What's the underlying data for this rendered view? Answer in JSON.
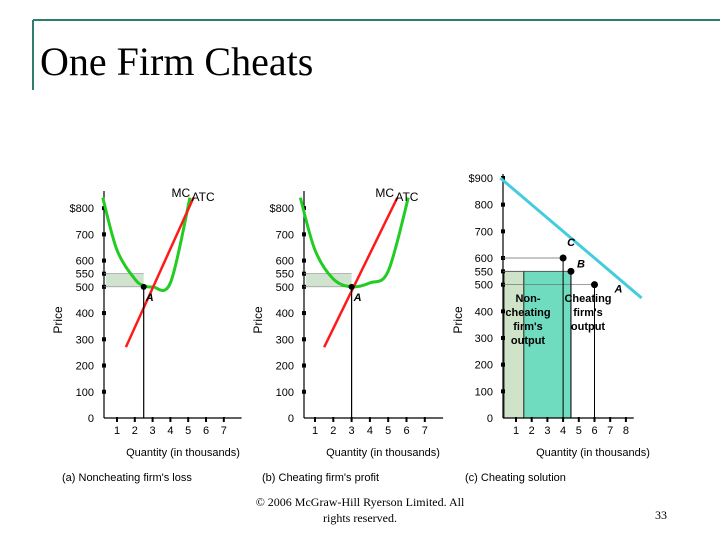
{
  "slide": {
    "title": "One Firm Cheats",
    "copyright": "© 2006 McGraw-Hill Ryerson Limited. All rights reserved.",
    "page_number": "33"
  },
  "colors": {
    "rule": "#2e7d6e",
    "price_band": "#cfe3cf",
    "mc_curve": "#ff1a1a",
    "atc_curve": "#22cc22",
    "demand_line": "#44ccdd",
    "noncheat_area": "#cfe3c8",
    "cheat_area": "#6fdcc0",
    "axes": "#000000"
  },
  "chart_data": [
    {
      "type": "line",
      "caption": "(a) Noncheating firm's loss",
      "xlabel": "Quantity (in thousands)",
      "ylabel": "Price",
      "x_ticks": [
        "1",
        "2",
        "3",
        "4",
        "5",
        "6",
        "7"
      ],
      "y_ticks": [
        "0",
        "100",
        "200",
        "300",
        "400",
        "500",
        "550",
        "600",
        "700",
        "$800"
      ],
      "xlim": [
        0,
        8
      ],
      "ylim": [
        0,
        850
      ],
      "atc_series": {
        "name": "ATC",
        "x": [
          0.2,
          1,
          2,
          2.5,
          3,
          4,
          5.1
        ],
        "y": [
          840,
          640,
          530,
          505,
          500,
          515,
          840
        ]
      },
      "mc_series": {
        "name": "MC",
        "x": [
          1.5,
          5.3
        ],
        "y": [
          270,
          840
        ]
      },
      "point": {
        "label": "A",
        "x": 2.5,
        "y": 500
      },
      "qline_x": 2.5,
      "price_band": [
        500,
        550
      ],
      "curve_labels": {
        "mc": "MC",
        "atc": "ATC"
      }
    },
    {
      "type": "line",
      "caption": "(b) Cheating firm's profit",
      "xlabel": "Quantity (in thousands)",
      "ylabel": "Price",
      "x_ticks": [
        "1",
        "2",
        "3",
        "4",
        "5",
        "6",
        "7"
      ],
      "y_ticks": [
        "0",
        "100",
        "200",
        "300",
        "400",
        "500",
        "550",
        "600",
        "700",
        "$800"
      ],
      "xlim": [
        0,
        8
      ],
      "ylim": [
        0,
        850
      ],
      "atc_series": {
        "name": "ATC",
        "x": [
          0.2,
          1,
          2,
          3,
          4,
          5,
          6.1
        ],
        "y": [
          840,
          640,
          530,
          500,
          515,
          560,
          840
        ]
      },
      "mc_series": {
        "name": "MC",
        "x": [
          1.5,
          5.5
        ],
        "y": [
          270,
          840
        ]
      },
      "point": {
        "label": "A",
        "x": 3,
        "y": 500
      },
      "qline_x": 3,
      "price_band": [
        500,
        550
      ],
      "curve_labels": {
        "mc": "MC",
        "atc": "ATC"
      }
    },
    {
      "type": "line",
      "caption": "(c) Cheating solution",
      "xlabel": "Quantity (in thousands)",
      "ylabel": "Price",
      "x_ticks": [
        "1",
        "2",
        "3",
        "4",
        "5",
        "6",
        "7",
        "8"
      ],
      "y_ticks": [
        "0",
        "100",
        "200",
        "300",
        "400",
        "500",
        "550",
        "600",
        "700",
        "800",
        "$900"
      ],
      "xlim": [
        0,
        8.5
      ],
      "ylim": [
        0,
        900
      ],
      "demand_series": {
        "name": "Demand",
        "x": [
          0,
          9
        ],
        "y": [
          900,
          450
        ]
      },
      "points": [
        {
          "label": "C",
          "x": 4,
          "y": 600
        },
        {
          "label": "B",
          "x": 4.5,
          "y": 550
        },
        {
          "label": "A",
          "x": 6,
          "y": 500
        }
      ],
      "noncheat_area": {
        "x": [
          0,
          1.5
        ],
        "y": [
          0,
          550
        ]
      },
      "cheat_area": {
        "x": [
          1.5,
          4.5
        ],
        "y": [
          0,
          550
        ]
      },
      "area_labels": {
        "noncheat": [
          "Non-",
          "cheating",
          "firm's",
          "output"
        ],
        "cheat": [
          "Cheating",
          "firm's",
          "output"
        ]
      }
    }
  ]
}
